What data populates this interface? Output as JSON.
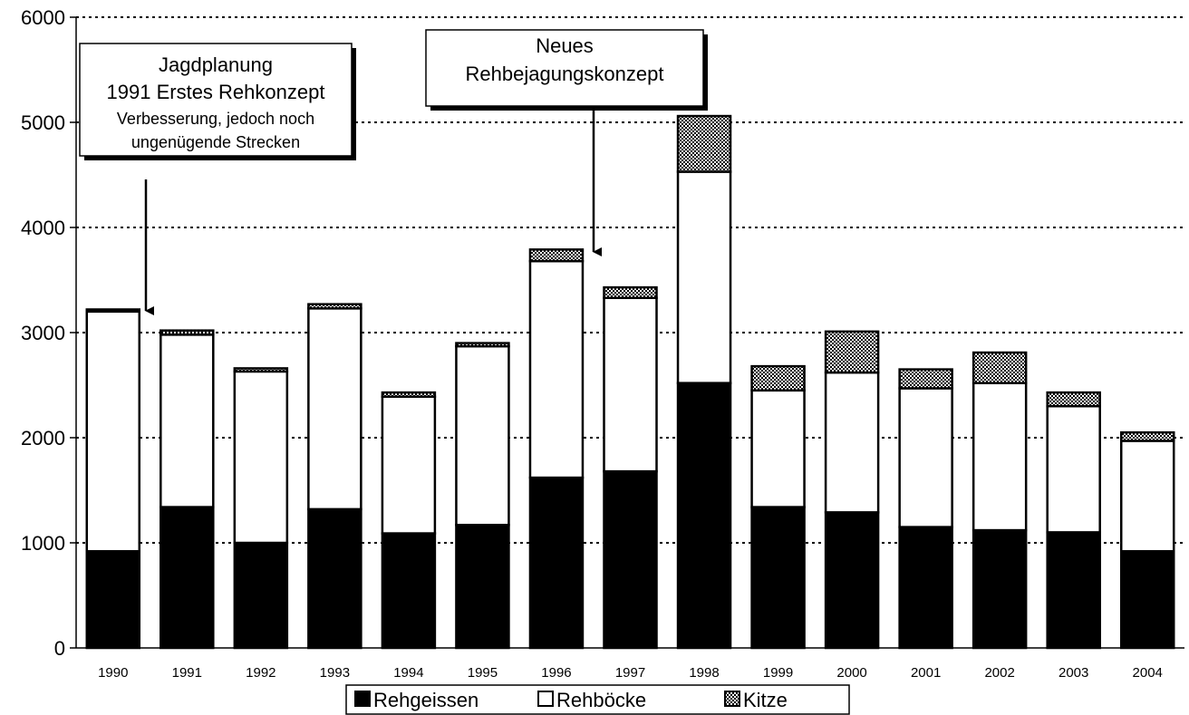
{
  "chart_data": {
    "type": "bar",
    "stacked": true,
    "categories": [
      "1990",
      "1991",
      "1992",
      "1993",
      "1994",
      "1995",
      "1996",
      "1997",
      "1998",
      "1999",
      "2000",
      "2001",
      "2002",
      "2003",
      "2004"
    ],
    "series": [
      {
        "name": "Rehgeissen",
        "color": "#000000",
        "values": [
          920,
          1340,
          1000,
          1320,
          1090,
          1170,
          1620,
          1680,
          2520,
          1340,
          1290,
          1150,
          1120,
          1100,
          920
        ]
      },
      {
        "name": "Rehböcke",
        "color": "#ffffff",
        "values": [
          2280,
          1640,
          1630,
          1910,
          1300,
          1700,
          2060,
          1650,
          2010,
          1110,
          1330,
          1320,
          1400,
          1200,
          1050
        ]
      },
      {
        "name": "Kitze",
        "color": "#9a9a9a",
        "values": [
          20,
          40,
          30,
          40,
          40,
          30,
          110,
          100,
          530,
          230,
          390,
          180,
          290,
          130,
          80
        ]
      }
    ],
    "ylim": [
      0,
      6000
    ],
    "yticks": [
      0,
      1000,
      2000,
      3000,
      4000,
      5000,
      6000
    ],
    "grid": true,
    "legend_position": "bottom",
    "annotations": [
      {
        "lines": [
          "Jagdplanung",
          "1991  Erstes Rehkonzept",
          "Verbesserung, jedoch noch",
          "ungenügende Strecken"
        ]
      },
      {
        "lines": [
          "Neues",
          "Rehbejagungskonzept"
        ]
      }
    ]
  }
}
